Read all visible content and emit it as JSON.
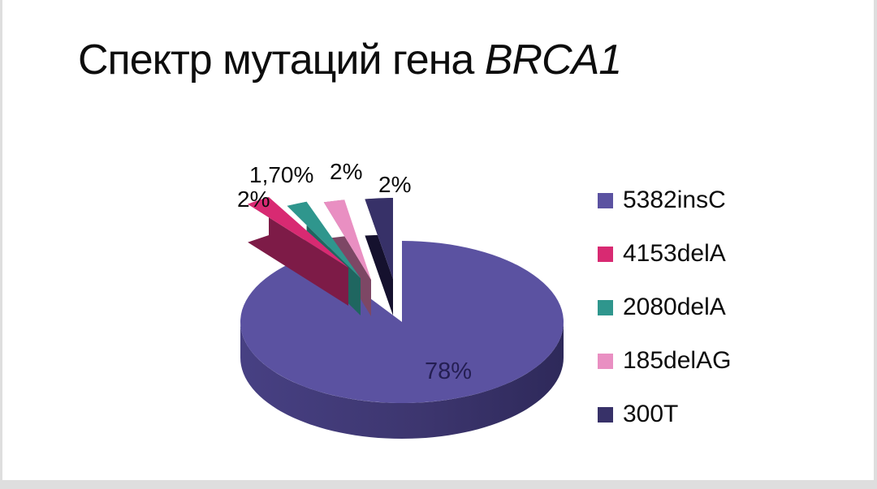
{
  "page": {
    "background_color": "#dedede",
    "card_color": "#ffffff"
  },
  "title": {
    "regular": "Спектр мутаций гена ",
    "italic": "BRCA1"
  },
  "chart_data": {
    "type": "pie",
    "style": "3d-exploded",
    "title": "Спектр мутаций гена BRCA1",
    "legend_position": "right",
    "series": [
      {
        "label": "5382insC",
        "value": 78,
        "value_label": "78%",
        "value_label_color": "#241e52",
        "color": "#5b52a1",
        "side_color": "#3d366f",
        "side_gradient": [
          "#474083",
          "#3d366f",
          "#2e295a"
        ]
      },
      {
        "label": "4153delA",
        "value": 2,
        "value_label": "2%",
        "value_label_color": "#0a0a0a",
        "color": "#d82a72",
        "side_color": "#7d1b47"
      },
      {
        "label": "2080delA",
        "value": 1.7,
        "value_label": "1,70%",
        "value_label_color": "#0a0a0a",
        "color": "#2f968d",
        "side_color": "#1f6660"
      },
      {
        "label": "185delAG",
        "value": 2,
        "value_label": "2%",
        "value_label_color": "#0a0a0a",
        "color": "#e98fc2",
        "side_color": "#7d4765"
      },
      {
        "label": "300T",
        "value": 2,
        "value_label": "2%",
        "value_label_color": "#0a0a0a",
        "color": "#373168",
        "side_color": "#15112e"
      }
    ]
  }
}
